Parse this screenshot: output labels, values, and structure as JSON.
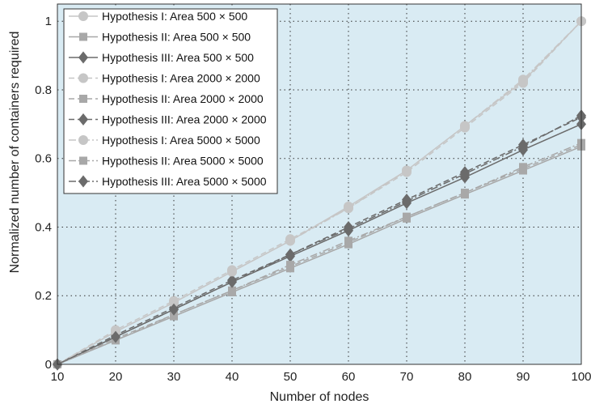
{
  "chart_data": {
    "type": "line",
    "title": "",
    "xlabel": "Number of nodes",
    "ylabel": "Normalized number of containers required",
    "x": [
      10,
      20,
      30,
      40,
      50,
      60,
      70,
      80,
      90,
      100
    ],
    "xlim": [
      10,
      100
    ],
    "ylim": [
      0,
      1.05
    ],
    "xticks": [
      "10",
      "20",
      "30",
      "40",
      "50",
      "60",
      "70",
      "80",
      "90",
      "100"
    ],
    "yticks": [
      "0",
      "0.2",
      "0.4",
      "0.6",
      "0.8",
      "1"
    ],
    "grid": true,
    "legend_position": "top-left",
    "colors": {
      "plot_bg": "#d9ebf3",
      "circle": "#c6c6c6",
      "square": "#a8a8a8",
      "diamond": "#6b6b6b",
      "grid": "#333333"
    },
    "series": [
      {
        "name": "Hypothesis I: Area 500 × 500",
        "marker": "circle",
        "dash": "solid",
        "values": [
          0,
          0.095,
          0.18,
          0.27,
          0.36,
          0.46,
          0.565,
          0.695,
          0.825,
          1.0
        ]
      },
      {
        "name": "Hypothesis II: Area 500 × 500",
        "marker": "square",
        "dash": "solid",
        "values": [
          0,
          0.07,
          0.14,
          0.21,
          0.28,
          0.35,
          0.425,
          0.495,
          0.565,
          0.635
        ]
      },
      {
        "name": "Hypothesis III: Area 500 × 500",
        "marker": "diamond",
        "dash": "solid",
        "values": [
          0,
          0.08,
          0.16,
          0.24,
          0.315,
          0.39,
          0.47,
          0.545,
          0.625,
          0.7
        ]
      },
      {
        "name": "Hypothesis I: Area 2000 × 2000",
        "marker": "circle",
        "dash": "dashed",
        "values": [
          0,
          0.1,
          0.185,
          0.275,
          0.365,
          0.455,
          0.56,
          0.69,
          0.82,
          1.0
        ]
      },
      {
        "name": "Hypothesis II: Area 2000 × 2000",
        "marker": "square",
        "dash": "dashed",
        "values": [
          0,
          0.075,
          0.145,
          0.215,
          0.285,
          0.355,
          0.43,
          0.5,
          0.57,
          0.64
        ]
      },
      {
        "name": "Hypothesis III: Area 2000 × 2000",
        "marker": "diamond",
        "dash": "dashed",
        "values": [
          0,
          0.085,
          0.165,
          0.245,
          0.32,
          0.4,
          0.48,
          0.56,
          0.64,
          0.72
        ]
      },
      {
        "name": "Hypothesis I: Area 5000 × 5000",
        "marker": "circle",
        "dash": "dashdot",
        "values": [
          0,
          0.095,
          0.18,
          0.27,
          0.36,
          0.455,
          0.565,
          0.695,
          0.83,
          1.0
        ]
      },
      {
        "name": "Hypothesis II: Area 5000 × 5000",
        "marker": "square",
        "dash": "dashdot",
        "values": [
          0,
          0.07,
          0.145,
          0.215,
          0.29,
          0.36,
          0.43,
          0.5,
          0.575,
          0.645
        ]
      },
      {
        "name": "Hypothesis III: Area 5000 × 5000",
        "marker": "diamond",
        "dash": "dashdot",
        "values": [
          0,
          0.08,
          0.16,
          0.24,
          0.32,
          0.395,
          0.475,
          0.555,
          0.635,
          0.725
        ]
      }
    ]
  }
}
